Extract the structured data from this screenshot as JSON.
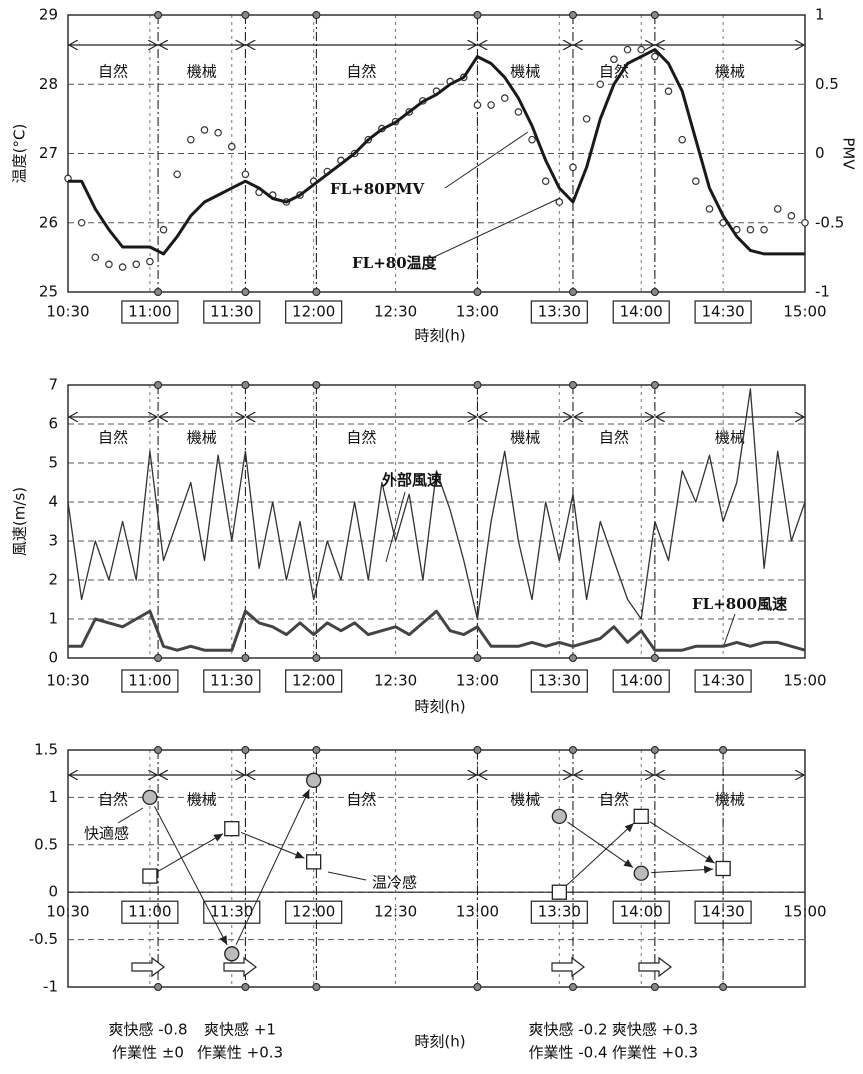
{
  "chart_data": [
    {
      "type": "line",
      "xlabel": "時刻(h)",
      "ylabel": "温度(°C)",
      "y2label": "PMV",
      "xlim": [
        "10:30",
        "15:00"
      ],
      "xticks": [
        "10:30",
        "11:00",
        "11:30",
        "12:00",
        "12:30",
        "13:00",
        "13:30",
        "14:00",
        "14:30",
        "15:00"
      ],
      "xtick_boxed": [
        false,
        true,
        true,
        true,
        false,
        false,
        true,
        true,
        true,
        false
      ],
      "ylim": [
        25,
        29
      ],
      "yticks": [
        25,
        26,
        27,
        28,
        29
      ],
      "y2lim": [
        -1,
        1
      ],
      "y2ticks": [
        -1,
        -0.5,
        0,
        0.5,
        1
      ],
      "grid": true,
      "periods": [
        {
          "label": "自然",
          "start": "10:30",
          "end": "11:03"
        },
        {
          "label": "機械",
          "start": "11:03",
          "end": "11:35"
        },
        {
          "label": "自然",
          "start": "11:35",
          "end": "13:00"
        },
        {
          "label": "機械",
          "start": "13:00",
          "end": "13:35"
        },
        {
          "label": "自然",
          "start": "13:35",
          "end": "14:05"
        },
        {
          "label": "機械",
          "start": "14:05",
          "end": "15:00"
        }
      ],
      "markers": [
        "11:03",
        "11:35",
        "12:01",
        "13:00",
        "13:35",
        "14:05"
      ],
      "x": [
        "10:30",
        "10:35",
        "10:40",
        "10:45",
        "10:50",
        "10:55",
        "11:00",
        "11:05",
        "11:10",
        "11:15",
        "11:20",
        "11:25",
        "11:30",
        "11:35",
        "11:40",
        "11:45",
        "11:50",
        "11:55",
        "12:00",
        "12:05",
        "12:10",
        "12:15",
        "12:20",
        "12:25",
        "12:30",
        "12:35",
        "12:40",
        "12:45",
        "12:50",
        "12:55",
        "13:00",
        "13:05",
        "13:10",
        "13:15",
        "13:20",
        "13:25",
        "13:30",
        "13:35",
        "13:40",
        "13:45",
        "13:50",
        "13:55",
        "14:00",
        "14:05",
        "14:10",
        "14:15",
        "14:20",
        "14:25",
        "14:30",
        "14:35",
        "14:40",
        "14:45",
        "14:50",
        "14:55",
        "15:00"
      ],
      "series": [
        {
          "name": "FL+80PMV",
          "color": "#333333",
          "style": "markers",
          "axis": "y2",
          "values": [
            -0.18,
            -0.5,
            -0.75,
            -0.8,
            -0.82,
            -0.8,
            -0.78,
            -0.55,
            -0.15,
            0.1,
            0.17,
            0.15,
            0.05,
            -0.15,
            -0.28,
            -0.3,
            -0.35,
            -0.3,
            -0.2,
            -0.13,
            -0.05,
            0,
            0.1,
            0.18,
            0.23,
            0.3,
            0.38,
            0.45,
            0.52,
            0.55,
            0.35,
            0.35,
            0.4,
            0.3,
            0.1,
            -0.2,
            -0.35,
            -0.1,
            0.25,
            0.5,
            0.68,
            0.75,
            0.75,
            0.7,
            0.45,
            0.1,
            -0.2,
            -0.4,
            -0.5,
            -0.55,
            -0.55,
            -0.55,
            -0.4,
            -0.45,
            -0.5
          ]
        },
        {
          "name": "FL+80温度",
          "color": "#1a1a1a",
          "style": "line",
          "values": [
            26.6,
            26.6,
            26.2,
            25.9,
            25.65,
            25.65,
            25.65,
            25.55,
            25.8,
            26.1,
            26.3,
            26.4,
            26.5,
            26.6,
            26.5,
            26.35,
            26.3,
            26.4,
            26.55,
            26.7,
            26.85,
            27.0,
            27.2,
            27.35,
            27.45,
            27.6,
            27.75,
            27.85,
            28.0,
            28.1,
            28.4,
            28.3,
            28.1,
            27.8,
            27.4,
            26.9,
            26.5,
            26.3,
            26.8,
            27.5,
            28.0,
            28.3,
            28.4,
            28.5,
            28.3,
            27.9,
            27.2,
            26.5,
            26.1,
            25.8,
            25.6,
            25.55,
            25.55,
            25.55,
            25.55
          ]
        }
      ]
    },
    {
      "type": "line",
      "xlabel": "時刻(h)",
      "ylabel": "風速(m/s)",
      "xlim": [
        "10:30",
        "15:00"
      ],
      "xticks": [
        "10:30",
        "11:00",
        "11:30",
        "12:00",
        "12:30",
        "13:00",
        "13:30",
        "14:00",
        "14:30",
        "15:00"
      ],
      "xtick_boxed": [
        false,
        true,
        true,
        true,
        false,
        false,
        true,
        true,
        true,
        false
      ],
      "ylim": [
        0,
        7
      ],
      "yticks": [
        0,
        1,
        2,
        3,
        4,
        5,
        6,
        7
      ],
      "grid": true,
      "periods": [
        {
          "label": "自然",
          "start": "10:30",
          "end": "11:03"
        },
        {
          "label": "機械",
          "start": "11:03",
          "end": "11:35"
        },
        {
          "label": "自然",
          "start": "11:35",
          "end": "13:00"
        },
        {
          "label": "機械",
          "start": "13:00",
          "end": "13:35"
        },
        {
          "label": "自然",
          "start": "13:35",
          "end": "14:05"
        },
        {
          "label": "機械",
          "start": "14:05",
          "end": "15:00"
        }
      ],
      "markers": [
        "11:03",
        "11:35",
        "12:01",
        "13:00",
        "13:35",
        "14:05"
      ],
      "x": [
        "10:30",
        "10:35",
        "10:40",
        "10:45",
        "10:50",
        "10:55",
        "11:00",
        "11:05",
        "11:10",
        "11:15",
        "11:20",
        "11:25",
        "11:30",
        "11:35",
        "11:40",
        "11:45",
        "11:50",
        "11:55",
        "12:00",
        "12:05",
        "12:10",
        "12:15",
        "12:20",
        "12:25",
        "12:30",
        "12:35",
        "12:40",
        "12:45",
        "12:50",
        "12:55",
        "13:00",
        "13:05",
        "13:10",
        "13:15",
        "13:20",
        "13:25",
        "13:30",
        "13:35",
        "13:40",
        "13:45",
        "13:50",
        "13:55",
        "14:00",
        "14:05",
        "14:10",
        "14:15",
        "14:20",
        "14:25",
        "14:30",
        "14:35",
        "14:40",
        "14:45",
        "14:50",
        "14:55",
        "15:00"
      ],
      "series": [
        {
          "name": "外部風速",
          "color": "#333333",
          "style": "line",
          "width": 1.3,
          "values": [
            4.0,
            1.5,
            3.0,
            2.0,
            3.5,
            2.0,
            5.3,
            2.5,
            3.5,
            4.5,
            2.5,
            5.2,
            3.0,
            5.3,
            2.3,
            4.0,
            2.0,
            3.5,
            1.5,
            3.0,
            2.0,
            4.0,
            2.0,
            4.5,
            3.0,
            4.2,
            2.0,
            4.8,
            3.8,
            2.5,
            1.0,
            3.5,
            5.3,
            3.0,
            1.5,
            4.0,
            2.5,
            4.2,
            1.5,
            3.5,
            2.5,
            1.5,
            1.0,
            3.5,
            2.5,
            4.8,
            4.0,
            5.2,
            3.5,
            4.5,
            6.9,
            2.3,
            5.3,
            3.0,
            4.0
          ]
        },
        {
          "name": "FL+800風速",
          "color": "#444444",
          "style": "line",
          "width": 3,
          "values": [
            0.3,
            0.3,
            1.0,
            0.9,
            0.8,
            1.0,
            1.2,
            0.3,
            0.2,
            0.3,
            0.2,
            0.2,
            0.2,
            1.2,
            0.9,
            0.8,
            0.6,
            0.9,
            0.6,
            0.9,
            0.7,
            0.9,
            0.6,
            0.7,
            0.8,
            0.6,
            0.9,
            1.2,
            0.7,
            0.6,
            0.8,
            0.3,
            0.3,
            0.3,
            0.4,
            0.3,
            0.4,
            0.3,
            0.4,
            0.5,
            0.8,
            0.4,
            0.7,
            0.2,
            0.2,
            0.2,
            0.3,
            0.3,
            0.3,
            0.4,
            0.3,
            0.4,
            0.4,
            0.3,
            0.2
          ]
        }
      ]
    },
    {
      "type": "scatter",
      "xlabel": "時刻(h)",
      "xlim": [
        "10:30",
        "15:00"
      ],
      "xticks": [
        "10:30",
        "11:00",
        "11:30",
        "12:00",
        "12:30",
        "13:00",
        "13:30",
        "14:00",
        "14:30",
        "15:00"
      ],
      "xtick_boxed": [
        false,
        true,
        true,
        true,
        false,
        false,
        true,
        true,
        true,
        false
      ],
      "ylim": [
        -1,
        1.5
      ],
      "yticks": [
        -1,
        -0.5,
        0,
        0.5,
        1,
        1.5
      ],
      "grid": true,
      "periods": [
        {
          "label": "自然",
          "start": "10:30",
          "end": "11:03"
        },
        {
          "label": "機械",
          "start": "11:03",
          "end": "11:35"
        },
        {
          "label": "自然",
          "start": "11:35",
          "end": "13:00"
        },
        {
          "label": "機械",
          "start": "13:00",
          "end": "13:35"
        },
        {
          "label": "自然",
          "start": "13:35",
          "end": "14:05"
        },
        {
          "label": "機械",
          "start": "14:05",
          "end": "15:00"
        }
      ],
      "markers": [
        "11:03",
        "11:35",
        "12:01",
        "13:00",
        "13:35",
        "14:05",
        "14:30"
      ],
      "x": [
        "11:00",
        "11:30",
        "12:00",
        "13:30",
        "14:00",
        "14:30"
      ],
      "series": [
        {
          "name": "快適感",
          "color": "#bbbbbb",
          "marker": "circle",
          "values": [
            1.0,
            -0.65,
            1.18,
            0.8,
            0.2,
            0.25
          ]
        },
        {
          "name": "温冷感",
          "color": "#ffffff",
          "marker": "square",
          "values": [
            0.17,
            0.67,
            0.32,
            0,
            0.8,
            0.25
          ]
        }
      ],
      "notes": [
        [
          "爽快感 -0.8",
          "作業性 ±0"
        ],
        [
          "爽快感 +1",
          "作業性 +0.3"
        ],
        [
          "爽快感 -0.2",
          "作業性 -0.4"
        ],
        [
          "爽快感 +0.3",
          "作業性 +0.3"
        ]
      ]
    }
  ]
}
